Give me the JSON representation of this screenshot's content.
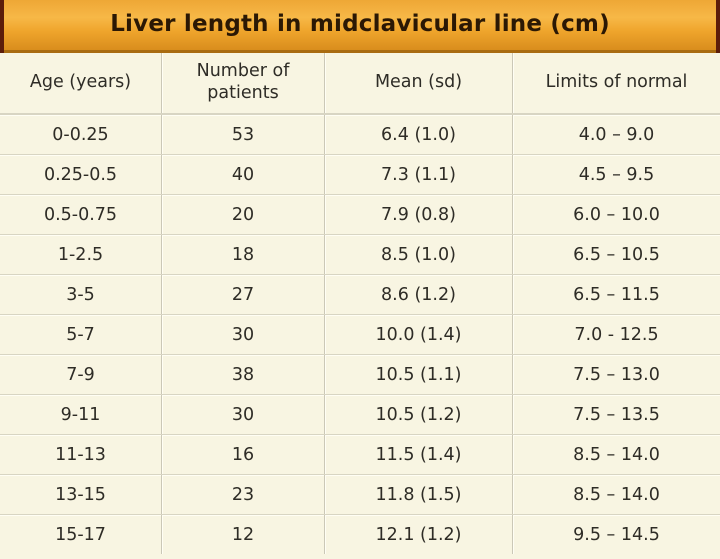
{
  "chart_data": {
    "type": "table",
    "title": "Liver length in midclavicular line (cm)",
    "columns": [
      "Age (years)",
      "Number of patients",
      "Mean (sd)",
      "Limits of normal"
    ],
    "rows": [
      [
        "0-0.25",
        "53",
        "6.4 (1.0)",
        "4.0 – 9.0"
      ],
      [
        "0.25-0.5",
        "40",
        "7.3 (1.1)",
        "4.5 – 9.5"
      ],
      [
        "0.5-0.75",
        "20",
        "7.9 (0.8)",
        "6.0 – 10.0"
      ],
      [
        "1-2.5",
        "18",
        "8.5 (1.0)",
        "6.5 – 10.5"
      ],
      [
        "3-5",
        "27",
        "8.6 (1.2)",
        "6.5 – 11.5"
      ],
      [
        "5-7",
        "30",
        "10.0 (1.4)",
        "7.0 - 12.5"
      ],
      [
        "7-9",
        "38",
        "10.5 (1.1)",
        "7.5 – 13.0"
      ],
      [
        "9-11",
        "30",
        "10.5 (1.2)",
        "7.5 – 13.5"
      ],
      [
        "11-13",
        "16",
        "11.5 (1.4)",
        "8.5 – 14.0"
      ],
      [
        "13-15",
        "23",
        "11.8 (1.5)",
        "8.5 – 14.0"
      ],
      [
        "15-17",
        "12",
        "12.1 (1.2)",
        "9.5 – 14.5"
      ]
    ]
  },
  "colors": {
    "banner_gradient_top": "#eea735",
    "banner_gradient_mid": "#f7b847",
    "banner_gradient_bottom": "#d98d1d",
    "banner_bottom_border": "#a96c11",
    "banner_edge_strip": "#5c1d0a",
    "title_text": "#2b1804",
    "table_background": "#f8f5e2",
    "cell_text": "#2e2c26",
    "grid_line": "#d8d5c3"
  }
}
